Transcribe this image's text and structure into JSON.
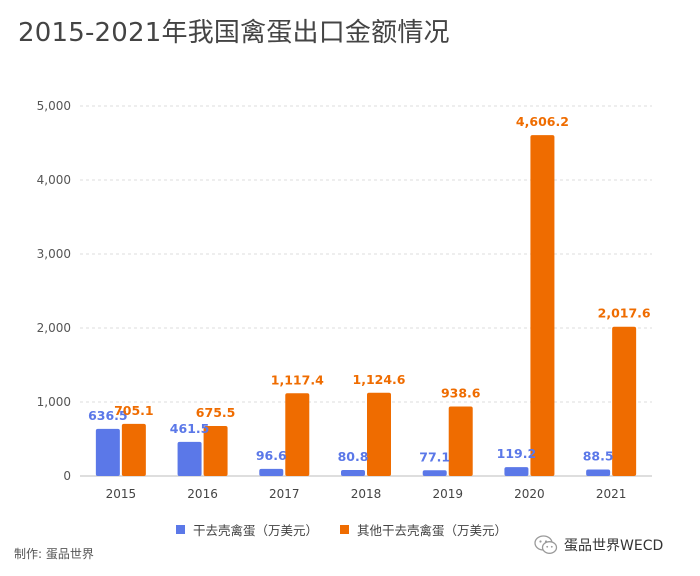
{
  "title": "2015-2021年我国禽蛋出口金额情况",
  "credit": "制作: 蛋品世界",
  "brand": "蛋品世界WECD",
  "colors": {
    "series1": "#5b78e8",
    "series2": "#ef6c00"
  },
  "legend": [
    {
      "label": "干去壳禽蛋（万美元）"
    },
    {
      "label": "其他干去壳禽蛋（万美元）"
    }
  ],
  "chart_data": {
    "type": "bar",
    "title": "2015-2021年我国禽蛋出口金额情况",
    "categories": [
      "2015",
      "2016",
      "2017",
      "2018",
      "2019",
      "2020",
      "2021"
    ],
    "series": [
      {
        "name": "干去壳禽蛋（万美元）",
        "values": [
          636.5,
          461.5,
          96.6,
          80.8,
          77.1,
          119.2,
          88.5
        ],
        "labels": [
          "636.5",
          "461.5",
          "96.6",
          "80.8",
          "77.1",
          "119.2",
          "88.5"
        ]
      },
      {
        "name": "其他干去壳禽蛋（万美元）",
        "values": [
          705.1,
          675.5,
          1117.4,
          1124.6,
          938.6,
          4606.2,
          2017.6
        ],
        "labels": [
          "705.1",
          "675.5",
          "1,117.4",
          "1,124.6",
          "938.6",
          "4,606.2",
          "2,017.6"
        ]
      }
    ],
    "ylim": [
      0,
      5000
    ],
    "yticks": [
      {
        "value": 0,
        "label": "0"
      },
      {
        "value": 1000,
        "label": "1,000"
      },
      {
        "value": 2000,
        "label": "2,000"
      },
      {
        "value": 3000,
        "label": "3,000"
      },
      {
        "value": 4000,
        "label": "4,000"
      },
      {
        "value": 5000,
        "label": "5,000"
      }
    ],
    "grid": true,
    "legend_position": "bottom"
  }
}
